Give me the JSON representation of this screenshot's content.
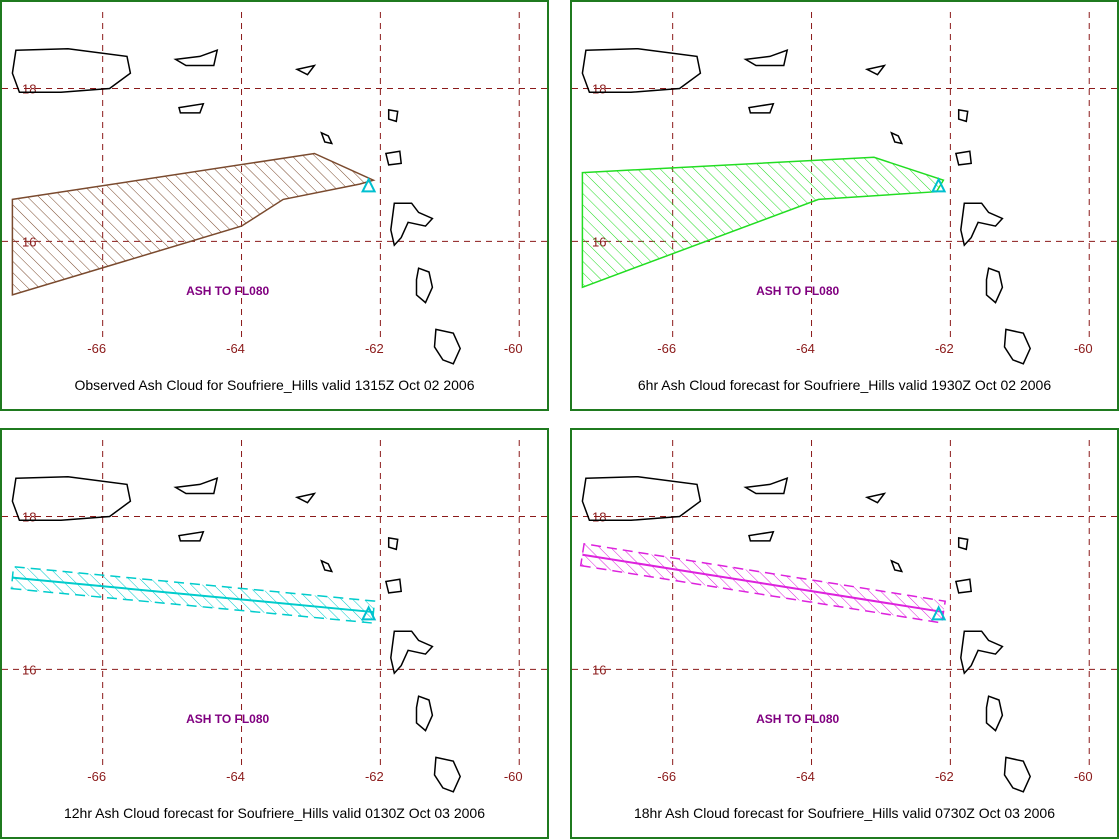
{
  "colors": {
    "panel_border": "#1f7a1f",
    "grid": "#8b1a1a",
    "tick_label": "#8b1a1a",
    "coast": "#000000",
    "level_label": "#800080",
    "volcano_marker": "#00c0d0"
  },
  "axes": {
    "lon_ticks": [
      "-66",
      "-64",
      "-62",
      "-60"
    ],
    "lat_ticks": [
      "18",
      "16"
    ],
    "lon_range": [
      -67.45,
      -59.6
    ],
    "lat_range": [
      14.75,
      19.0
    ]
  },
  "volcano": {
    "name": "Soufriere_Hills",
    "lon": -62.17,
    "lat": 16.72
  },
  "panels": [
    {
      "caption": "Observed Ash Cloud for Soufriere_Hills valid 1315Z Oct 02 2006",
      "level_label": "ASH TO FL080",
      "cloud_color": "#7a4a2e",
      "cloud_type": "polygon",
      "cloud_lonlat": [
        [
          -67.3,
          16.55
        ],
        [
          -62.95,
          17.15
        ],
        [
          -62.1,
          16.8
        ],
        [
          -62.3,
          16.75
        ],
        [
          -63.4,
          16.55
        ],
        [
          -64.0,
          16.2
        ],
        [
          -67.3,
          15.3
        ]
      ]
    },
    {
      "caption": "6hr Ash Cloud forecast for Soufriere_Hills valid 1930Z Oct 02 2006",
      "level_label": "ASH TO FL080",
      "cloud_color": "#22dd22",
      "cloud_type": "polygon",
      "cloud_lonlat": [
        [
          -67.3,
          16.9
        ],
        [
          -63.1,
          17.1
        ],
        [
          -62.1,
          16.8
        ],
        [
          -62.2,
          16.65
        ],
        [
          -63.9,
          16.55
        ],
        [
          -67.3,
          15.4
        ]
      ]
    },
    {
      "caption": "12hr Ash Cloud forecast for Soufriere_Hills valid 0130Z Oct 03 2006",
      "level_label": "ASH TO FL080",
      "cloud_color": "#00cccc",
      "cloud_type": "line",
      "cloud_lonlat": [
        [
          -67.3,
          17.2
        ],
        [
          -62.1,
          16.75
        ]
      ]
    },
    {
      "caption": "18hr Ash Cloud forecast for Soufriere_Hills valid 0730Z Oct 03 2006",
      "level_label": "ASH TO FL080",
      "cloud_color": "#dd22dd",
      "cloud_type": "line",
      "cloud_lonlat": [
        [
          -67.3,
          17.5
        ],
        [
          -62.1,
          16.75
        ]
      ]
    }
  ]
}
